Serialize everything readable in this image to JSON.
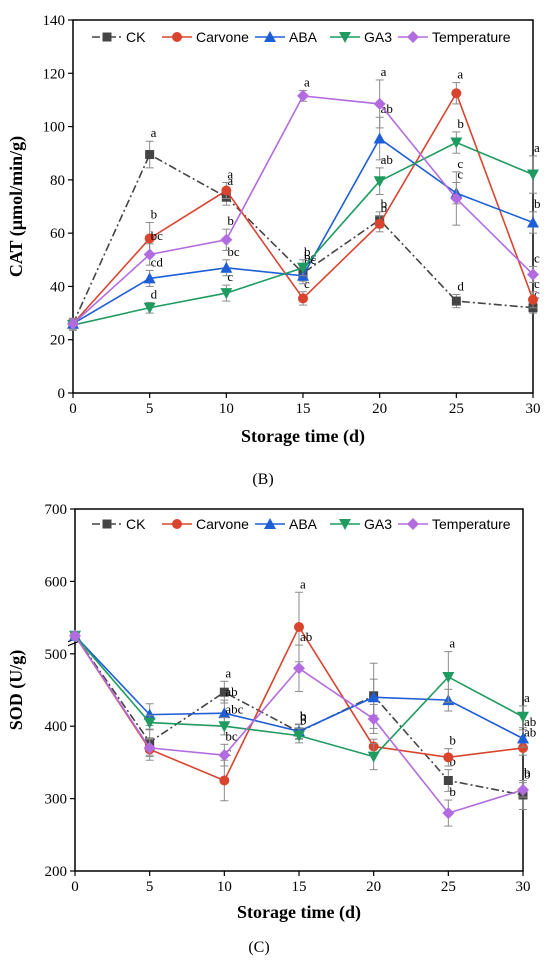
{
  "chart_data": [
    {
      "type": "line",
      "panel": "B",
      "caption": "(B)",
      "xlabel": "Storage time (d)",
      "ylabel": "CAT (µmol/min/g)",
      "x": [
        0,
        5,
        10,
        15,
        20,
        25,
        30
      ],
      "xlim": [
        0,
        30
      ],
      "ylim": [
        0,
        140
      ],
      "xticks": [
        0,
        5,
        10,
        15,
        20,
        25,
        30
      ],
      "yticks": [
        0,
        20,
        40,
        60,
        80,
        100,
        120,
        140
      ],
      "legend_position": "top",
      "series": [
        {
          "name": "CK",
          "color": "#444444",
          "marker": "square",
          "dash": "8,3,2,3",
          "values": [
            26,
            89.5,
            73.5,
            45,
            65,
            34.5,
            32
          ],
          "errors": [
            2,
            5,
            3,
            3,
            3,
            2.5,
            2
          ],
          "labels": [
            "",
            "a",
            "a",
            "bc",
            "b",
            "d",
            "c"
          ]
        },
        {
          "name": "Carvone",
          "color": "#d9442f",
          "marker": "circle",
          "dash": "",
          "values": [
            26,
            58,
            76,
            35.5,
            63.5,
            112.5,
            35
          ],
          "errors": [
            2,
            6,
            3,
            2.5,
            3,
            4,
            3
          ],
          "labels": [
            "",
            "b",
            "a",
            "c",
            "b",
            "a",
            "c"
          ]
        },
        {
          "name": "ABA",
          "color": "#1f5fd6",
          "marker": "triangle",
          "dash": "",
          "values": [
            26,
            43,
            47,
            44,
            95.5,
            75,
            64
          ],
          "errors": [
            2,
            3,
            3,
            3,
            8,
            4,
            4
          ],
          "labels": [
            "",
            "cd",
            "bc",
            "bc",
            "ab",
            "c",
            "b"
          ]
        },
        {
          "name": "GA3",
          "color": "#1f9b62",
          "marker": "triangle-down",
          "dash": "",
          "values": [
            25.5,
            32,
            37.5,
            47,
            79.5,
            94,
            82
          ],
          "errors": [
            2,
            2,
            3,
            3,
            5,
            4,
            7
          ],
          "labels": [
            "",
            "d",
            "c",
            "b",
            "ab",
            "b",
            "a"
          ]
        },
        {
          "name": "Temperature",
          "color": "#b26ce0",
          "marker": "diamond",
          "dash": "",
          "values": [
            26,
            52,
            57.5,
            111.5,
            108.5,
            73,
            44.5
          ],
          "errors": [
            2,
            4,
            4,
            2,
            9,
            10,
            3
          ],
          "labels": [
            "",
            "bc",
            "b",
            "a",
            "a",
            "c",
            "c"
          ]
        }
      ]
    },
    {
      "type": "line",
      "panel": "C",
      "caption": "(C)",
      "xlabel": "Storage time (d)",
      "ylabel": "SOD (U/g)",
      "x": [
        0,
        5,
        10,
        15,
        20,
        25,
        30
      ],
      "xlim": [
        0,
        30
      ],
      "ylim": [
        200,
        700
      ],
      "xticks": [
        0,
        5,
        10,
        15,
        20,
        25,
        30
      ],
      "yticks": [
        200,
        300,
        400,
        500,
        600,
        700
      ],
      "axis_break_at": 525,
      "legend_position": "top",
      "series": [
        {
          "name": "CK",
          "color": "#444444",
          "marker": "square",
          "dash": "8,3,2,3",
          "values": [
            525,
            378,
            447,
            392,
            442,
            325,
            305
          ],
          "errors": [
            5,
            18,
            15,
            10,
            45,
            15,
            20
          ],
          "labels": [
            "",
            "",
            "a",
            "b",
            "",
            "b",
            "b"
          ]
        },
        {
          "name": "Carvone",
          "color": "#d9442f",
          "marker": "circle",
          "dash": "",
          "values": [
            525,
            368,
            325,
            537,
            372,
            357,
            370
          ],
          "errors": [
            5,
            15,
            28,
            48,
            10,
            12,
            10
          ],
          "labels": [
            "",
            "",
            "c",
            "a",
            "",
            "b",
            "ab"
          ]
        },
        {
          "name": "ABA",
          "color": "#1f5fd6",
          "marker": "triangle",
          "dash": "",
          "values": [
            525,
            416,
            418,
            393,
            440,
            436,
            383
          ],
          "errors": [
            5,
            15,
            18,
            10,
            25,
            15,
            12
          ],
          "labels": [
            "",
            "",
            "ab",
            "b",
            "",
            "",
            "ab"
          ]
        },
        {
          "name": "GA3",
          "color": "#1f9b62",
          "marker": "triangle-down",
          "dash": "",
          "values": [
            525,
            405,
            400,
            387,
            358,
            468,
            413
          ],
          "errors": [
            5,
            10,
            12,
            10,
            18,
            35,
            15
          ],
          "labels": [
            "",
            "",
            "abc",
            "b",
            "",
            "a",
            "a"
          ]
        },
        {
          "name": "Temperature",
          "color": "#b26ce0",
          "marker": "diamond",
          "dash": "",
          "values": [
            525,
            370,
            360,
            480,
            410,
            280,
            312
          ],
          "errors": [
            5,
            12,
            15,
            32,
            20,
            18,
            10
          ],
          "labels": [
            "",
            "",
            "bc",
            "ab",
            "",
            "b",
            "b"
          ]
        }
      ]
    }
  ]
}
